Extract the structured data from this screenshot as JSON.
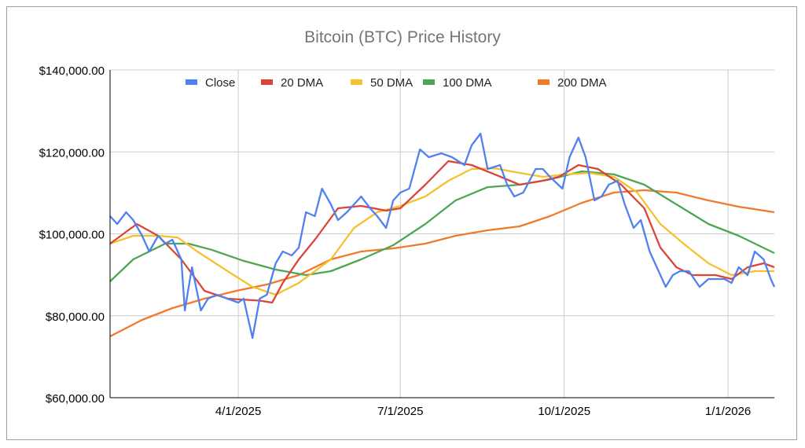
{
  "chart_data": {
    "type": "line",
    "title": "Bitcoin (BTC) Price History",
    "xlabel": "",
    "ylabel": "",
    "x_unit": "days since 2025-01-19",
    "xlim": [
      0,
      373
    ],
    "ylim": [
      60000,
      140000
    ],
    "y_ticks": [
      {
        "value": 60000,
        "label": "$60,000.00"
      },
      {
        "value": 80000,
        "label": "$80,000.00"
      },
      {
        "value": 100000,
        "label": "$100,000.00"
      },
      {
        "value": 120000,
        "label": "$120,000.00"
      },
      {
        "value": 140000,
        "label": "$140,000.00"
      }
    ],
    "x_ticks": [
      {
        "value": 72,
        "label": "4/1/2025"
      },
      {
        "value": 163,
        "label": "7/1/2025"
      },
      {
        "value": 255,
        "label": "10/1/2025"
      },
      {
        "value": 347,
        "label": "1/1/2026"
      }
    ],
    "grid": true,
    "legend_position": "top",
    "series": [
      {
        "name": "Close",
        "color": "#4f81f0",
        "points": [
          [
            0,
            104317
          ],
          [
            4,
            102400
          ],
          [
            9,
            105275
          ],
          [
            13,
            103357
          ],
          [
            18,
            99520
          ],
          [
            22,
            95683
          ],
          [
            27,
            99520
          ],
          [
            31,
            97600
          ],
          [
            35,
            98560
          ],
          [
            40,
            93764
          ],
          [
            42,
            81294
          ],
          [
            46,
            91846
          ],
          [
            51,
            81294
          ],
          [
            55,
            84172
          ],
          [
            60,
            85131
          ],
          [
            66,
            84172
          ],
          [
            72,
            83213
          ],
          [
            75,
            84172
          ],
          [
            80,
            74580
          ],
          [
            84,
            84172
          ],
          [
            88,
            85131
          ],
          [
            93,
            92805
          ],
          [
            97,
            95683
          ],
          [
            102,
            94724
          ],
          [
            106,
            96642
          ],
          [
            110,
            105275
          ],
          [
            115,
            104317
          ],
          [
            119,
            111031
          ],
          [
            124,
            107194
          ],
          [
            128,
            103357
          ],
          [
            133,
            105275
          ],
          [
            141,
            109112
          ],
          [
            146,
            106235
          ],
          [
            150,
            104317
          ],
          [
            155,
            101438
          ],
          [
            159,
            108153
          ],
          [
            163,
            110072
          ],
          [
            168,
            111031
          ],
          [
            174,
            120623
          ],
          [
            179,
            118705
          ],
          [
            186,
            119664
          ],
          [
            192,
            118705
          ],
          [
            199,
            116786
          ],
          [
            203,
            121582
          ],
          [
            208,
            124460
          ],
          [
            212,
            115827
          ],
          [
            219,
            116786
          ],
          [
            223,
            111990
          ],
          [
            227,
            109112
          ],
          [
            232,
            110072
          ],
          [
            239,
            115827
          ],
          [
            243,
            115827
          ],
          [
            247,
            113908
          ],
          [
            254,
            111031
          ],
          [
            258,
            118705
          ],
          [
            263,
            123501
          ],
          [
            267,
            118705
          ],
          [
            272,
            108153
          ],
          [
            276,
            109112
          ],
          [
            280,
            111990
          ],
          [
            285,
            112949
          ],
          [
            289,
            107194
          ],
          [
            294,
            101438
          ],
          [
            298,
            103357
          ],
          [
            303,
            95683
          ],
          [
            307,
            91846
          ],
          [
            312,
            87049
          ],
          [
            316,
            89927
          ],
          [
            320,
            90886
          ],
          [
            325,
            90886
          ],
          [
            331,
            87049
          ],
          [
            336,
            88968
          ],
          [
            340,
            88968
          ],
          [
            345,
            88968
          ],
          [
            349,
            88009
          ],
          [
            353,
            91846
          ],
          [
            358,
            89927
          ],
          [
            362,
            95683
          ],
          [
            367,
            93764
          ],
          [
            371,
            88968
          ],
          [
            373,
            87049
          ]
        ]
      },
      {
        "name": "20 DMA",
        "color": "#db4437",
        "points": [
          [
            0,
            97600
          ],
          [
            15,
            102400
          ],
          [
            27,
            99520
          ],
          [
            40,
            93764
          ],
          [
            53,
            86090
          ],
          [
            66,
            84172
          ],
          [
            84,
            83700
          ],
          [
            91,
            83213
          ],
          [
            97,
            88009
          ],
          [
            106,
            93764
          ],
          [
            115,
            98560
          ],
          [
            128,
            106235
          ],
          [
            141,
            106810
          ],
          [
            155,
            105660
          ],
          [
            163,
            106235
          ],
          [
            177,
            111990
          ],
          [
            190,
            117745
          ],
          [
            203,
            116786
          ],
          [
            216,
            114500
          ],
          [
            230,
            111990
          ],
          [
            243,
            112949
          ],
          [
            252,
            113908
          ],
          [
            263,
            116786
          ],
          [
            274,
            115827
          ],
          [
            287,
            111990
          ],
          [
            300,
            106235
          ],
          [
            309,
            96642
          ],
          [
            318,
            91846
          ],
          [
            327,
            89927
          ],
          [
            340,
            89927
          ],
          [
            349,
            88968
          ],
          [
            358,
            91846
          ],
          [
            367,
            92805
          ],
          [
            373,
            91846
          ]
        ]
      },
      {
        "name": "50 DMA",
        "color": "#f4c12f",
        "points": [
          [
            0,
            97600
          ],
          [
            13,
            99520
          ],
          [
            27,
            99520
          ],
          [
            38,
            99100
          ],
          [
            49,
            95683
          ],
          [
            66,
            90886
          ],
          [
            80,
            87049
          ],
          [
            93,
            85131
          ],
          [
            106,
            88009
          ],
          [
            124,
            93764
          ],
          [
            137,
            101438
          ],
          [
            150,
            105275
          ],
          [
            163,
            106810
          ],
          [
            177,
            109112
          ],
          [
            190,
            112949
          ],
          [
            203,
            115827
          ],
          [
            216,
            116000
          ],
          [
            230,
            114867
          ],
          [
            243,
            113908
          ],
          [
            256,
            114500
          ],
          [
            269,
            114867
          ],
          [
            283,
            113908
          ],
          [
            296,
            110072
          ],
          [
            309,
            102400
          ],
          [
            322,
            97600
          ],
          [
            336,
            92805
          ],
          [
            349,
            89927
          ],
          [
            362,
            90886
          ],
          [
            373,
            90886
          ]
        ]
      },
      {
        "name": "100 DMA",
        "color": "#4ea653",
        "points": [
          [
            0,
            88400
          ],
          [
            13,
            93764
          ],
          [
            31,
            97600
          ],
          [
            44,
            97600
          ],
          [
            57,
            96100
          ],
          [
            75,
            93400
          ],
          [
            93,
            91270
          ],
          [
            110,
            89927
          ],
          [
            124,
            90886
          ],
          [
            141,
            93764
          ],
          [
            159,
            97220
          ],
          [
            177,
            102400
          ],
          [
            194,
            108153
          ],
          [
            212,
            111400
          ],
          [
            230,
            111990
          ],
          [
            247,
            113300
          ],
          [
            265,
            115250
          ],
          [
            283,
            114500
          ],
          [
            300,
            111990
          ],
          [
            318,
            107194
          ],
          [
            336,
            102400
          ],
          [
            353,
            99520
          ],
          [
            373,
            95300
          ]
        ]
      },
      {
        "name": "200 DMA",
        "color": "#f07a2a",
        "points": [
          [
            0,
            74960
          ],
          [
            18,
            78990
          ],
          [
            35,
            81870
          ],
          [
            53,
            84172
          ],
          [
            71,
            86090
          ],
          [
            88,
            87625
          ],
          [
            106,
            89927
          ],
          [
            124,
            93764
          ],
          [
            141,
            95683
          ],
          [
            159,
            96450
          ],
          [
            177,
            97600
          ],
          [
            194,
            99520
          ],
          [
            212,
            100863
          ],
          [
            230,
            101822
          ],
          [
            247,
            104317
          ],
          [
            265,
            107577
          ],
          [
            283,
            110072
          ],
          [
            300,
            110647
          ],
          [
            318,
            110072
          ],
          [
            336,
            108153
          ],
          [
            353,
            106618
          ],
          [
            373,
            105275
          ]
        ]
      }
    ]
  }
}
